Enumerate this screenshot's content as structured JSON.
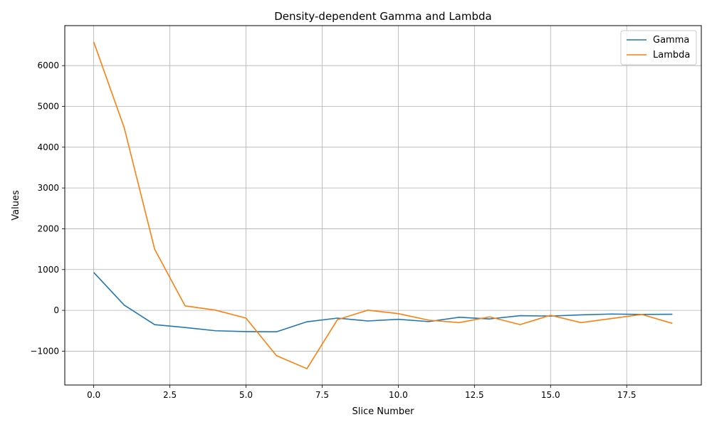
{
  "chart_data": {
    "type": "line",
    "title": "Density-dependent Gamma and Lambda",
    "xlabel": "Slice Number",
    "ylabel": "Values",
    "x": [
      0,
      1,
      2,
      3,
      4,
      5,
      6,
      7,
      8,
      9,
      10,
      11,
      12,
      13,
      14,
      15,
      16,
      17,
      18,
      19
    ],
    "series": [
      {
        "name": "Gamma",
        "color": "#1f77b4",
        "values": [
          930,
          130,
          -350,
          -420,
          -500,
          -520,
          -525,
          -280,
          -190,
          -260,
          -220,
          -275,
          -170,
          -210,
          -130,
          -140,
          -110,
          -90,
          -100,
          -95
        ]
      },
      {
        "name": "Lambda",
        "color": "#ff7f0e",
        "values": [
          6580,
          4480,
          1500,
          110,
          5,
          -190,
          -1110,
          -1430,
          -230,
          5,
          -80,
          -240,
          -300,
          -160,
          -350,
          -120,
          -300,
          -200,
          -100,
          -320
        ]
      }
    ],
    "xlim": [
      -0.95,
      19.95
    ],
    "ylim": [
      -1830,
      6980
    ],
    "xticks": [
      0.0,
      2.5,
      5.0,
      7.5,
      10.0,
      12.5,
      15.0,
      17.5
    ],
    "xtick_labels": [
      "0.0",
      "2.5",
      "5.0",
      "7.5",
      "10.0",
      "12.5",
      "15.0",
      "17.5"
    ],
    "yticks": [
      -1000,
      0,
      1000,
      2000,
      3000,
      4000,
      5000,
      6000
    ],
    "ytick_labels": [
      "−1000",
      "0",
      "1000",
      "2000",
      "3000",
      "4000",
      "5000",
      "6000"
    ],
    "grid": true,
    "legend_position": "top-right"
  }
}
